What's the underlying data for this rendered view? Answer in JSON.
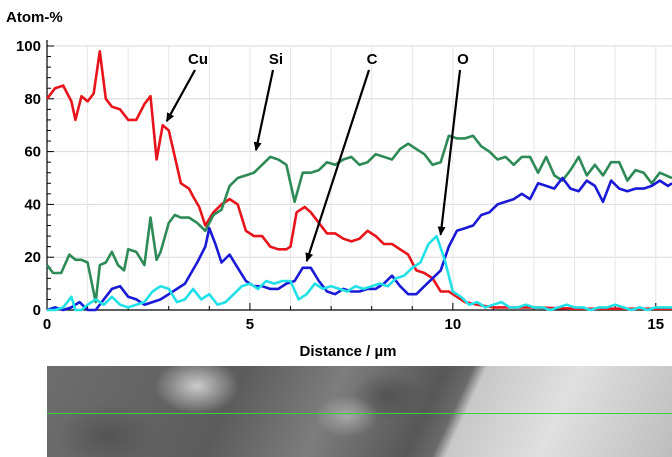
{
  "chart_data": {
    "type": "line",
    "ylabel": "Atom-%",
    "xlabel": "Distance / µm",
    "xlim": [
      0,
      15.4
    ],
    "ylim": [
      0,
      100
    ],
    "x_ticks": [
      0,
      5,
      10,
      15
    ],
    "y_ticks": [
      0,
      20,
      40,
      60,
      80,
      100
    ],
    "grid": true,
    "series": [
      {
        "color": "#e8141b",
        "x": [
          0,
          0.2,
          0.4,
          0.6,
          0.7,
          0.85,
          1.0,
          1.15,
          1.3,
          1.45,
          1.6,
          1.8,
          2.0,
          2.2,
          2.4,
          2.55,
          2.7,
          2.85,
          3.0,
          3.3,
          3.5,
          3.6,
          3.75,
          3.9,
          4.1,
          4.3,
          4.5,
          4.7,
          4.9,
          5.1,
          5.3,
          5.5,
          5.7,
          5.9,
          6.0,
          6.15,
          6.35,
          6.5,
          6.7,
          6.9,
          7.1,
          7.3,
          7.5,
          7.7,
          7.9,
          8.1,
          8.3,
          8.5,
          8.7,
          8.9,
          9.1,
          9.3,
          9.5,
          9.7,
          9.9,
          10.1,
          10.3,
          10.6,
          11,
          12,
          13,
          14,
          15,
          15.4
        ],
        "y": [
          80,
          84,
          85,
          79,
          72,
          81,
          79,
          82,
          98,
          80,
          77,
          76,
          72,
          72,
          78,
          81,
          57,
          70,
          68,
          48,
          46,
          43,
          39,
          32,
          37,
          40,
          42,
          40,
          30,
          28,
          28,
          24,
          23,
          23,
          24,
          37,
          39,
          37,
          33,
          29,
          29,
          27,
          26,
          27,
          30,
          28,
          25,
          25,
          23,
          21,
          15,
          14,
          12,
          7,
          7,
          5,
          3,
          2,
          1,
          1,
          0.5,
          0.5,
          0.5,
          0.5
        ]
      },
      {
        "color": "#2e8b57",
        "x": [
          0,
          0.15,
          0.35,
          0.55,
          0.7,
          0.85,
          1.0,
          1.2,
          1.3,
          1.45,
          1.6,
          1.75,
          1.9,
          2.0,
          2.2,
          2.4,
          2.55,
          2.7,
          2.8,
          3.0,
          3.15,
          3.3,
          3.5,
          3.7,
          3.9,
          4.1,
          4.3,
          4.5,
          4.7,
          4.9,
          5.1,
          5.3,
          5.5,
          5.7,
          5.9,
          6.1,
          6.3,
          6.5,
          6.7,
          6.9,
          7.1,
          7.3,
          7.5,
          7.7,
          7.9,
          8.1,
          8.3,
          8.5,
          8.7,
          8.9,
          9.1,
          9.3,
          9.5,
          9.7,
          9.9,
          10.1,
          10.3,
          10.5,
          10.7,
          10.9,
          11.1,
          11.3,
          11.5,
          11.7,
          11.9,
          12.1,
          12.3,
          12.5,
          12.7,
          12.9,
          13.1,
          13.3,
          13.5,
          13.7,
          13.9,
          14.1,
          14.3,
          14.5,
          14.7,
          14.9,
          15.1,
          15.4
        ],
        "y": [
          17,
          14,
          14,
          21,
          19,
          19,
          18,
          3,
          17,
          18,
          22,
          17,
          15,
          23,
          22,
          17,
          35,
          19,
          22,
          33,
          36,
          35,
          35,
          33,
          30,
          36,
          38,
          47,
          50,
          51,
          52,
          55,
          58,
          57,
          55,
          41,
          52,
          52,
          53,
          56,
          55,
          57,
          58,
          55,
          56,
          59,
          58,
          57,
          61,
          63,
          61,
          59,
          55,
          56,
          66,
          65,
          65,
          66,
          62,
          60,
          57,
          58,
          55,
          58,
          58,
          52,
          58,
          51,
          49,
          53,
          58,
          51,
          55,
          51,
          56,
          56,
          49,
          53,
          52,
          48,
          52,
          50
        ]
      },
      {
        "color": "#1a1ad6",
        "x": [
          0,
          0.2,
          0.4,
          0.6,
          0.8,
          1.0,
          1.2,
          1.4,
          1.6,
          1.8,
          2.0,
          2.2,
          2.4,
          2.6,
          2.8,
          3.0,
          3.2,
          3.4,
          3.55,
          3.7,
          3.9,
          4.0,
          4.15,
          4.3,
          4.5,
          4.7,
          4.9,
          5.1,
          5.3,
          5.5,
          5.7,
          5.9,
          6.1,
          6.3,
          6.5,
          6.7,
          6.9,
          7.1,
          7.3,
          7.5,
          7.7,
          7.9,
          8.1,
          8.3,
          8.5,
          8.7,
          8.9,
          9.1,
          9.3,
          9.5,
          9.7,
          9.9,
          10.1,
          10.3,
          10.5,
          10.7,
          10.9,
          11.1,
          11.3,
          11.5,
          11.7,
          11.9,
          12.1,
          12.3,
          12.5,
          12.7,
          12.9,
          13.1,
          13.3,
          13.5,
          13.7,
          13.9,
          14.1,
          14.3,
          14.5,
          14.7,
          14.9,
          15.1,
          15.3,
          15.4
        ],
        "y": [
          0,
          1,
          0,
          1,
          3,
          0,
          0,
          4,
          8,
          9,
          5,
          4,
          2,
          3,
          4,
          6,
          8,
          10,
          14,
          18,
          24,
          31,
          25,
          18,
          21,
          16,
          11,
          9,
          9,
          8,
          8,
          10,
          11,
          16,
          16,
          11,
          7,
          6,
          8,
          7,
          7,
          8,
          8,
          10,
          13,
          9,
          6,
          6,
          9,
          12,
          15,
          24,
          30,
          31,
          32,
          36,
          37,
          40,
          41,
          42,
          44,
          42,
          48,
          47,
          46,
          50,
          46,
          45,
          49,
          47,
          41,
          49,
          46,
          45,
          46,
          46,
          47,
          49,
          47,
          48
        ]
      },
      {
        "color": "#22e0e8",
        "x": [
          0,
          0.2,
          0.4,
          0.6,
          0.7,
          0.85,
          1.0,
          1.2,
          1.4,
          1.6,
          1.8,
          2.0,
          2.2,
          2.4,
          2.6,
          2.8,
          3.0,
          3.2,
          3.4,
          3.6,
          3.8,
          4.0,
          4.2,
          4.4,
          4.6,
          4.8,
          5.0,
          5.2,
          5.4,
          5.6,
          5.8,
          6.0,
          6.2,
          6.4,
          6.6,
          6.8,
          7.0,
          7.2,
          7.4,
          7.6,
          7.8,
          8.0,
          8.2,
          8.4,
          8.6,
          8.8,
          9.0,
          9.2,
          9.4,
          9.6,
          9.8,
          10.0,
          10.2,
          10.4,
          10.6,
          10.8,
          11.0,
          11.2,
          11.4,
          11.6,
          11.8,
          12.0,
          12.2,
          12.4,
          12.6,
          12.8,
          13.0,
          13.2,
          13.4,
          13.6,
          13.8,
          14.0,
          14.2,
          14.4,
          14.6,
          14.8,
          15.0,
          15.2,
          15.4
        ],
        "y": [
          0,
          0,
          1,
          5,
          0,
          0,
          2,
          4,
          2,
          5,
          2,
          1,
          2,
          3,
          7,
          9,
          8,
          3,
          4,
          8,
          4,
          6,
          2,
          3,
          6,
          9,
          10,
          8,
          11,
          10,
          11,
          11,
          4,
          6,
          10,
          8,
          9,
          8,
          7,
          9,
          8,
          9,
          10,
          9,
          12,
          13,
          16,
          18,
          25,
          28,
          19,
          7,
          5,
          2,
          3,
          1,
          2,
          3,
          1,
          1,
          2,
          1,
          1,
          0,
          1,
          2,
          1,
          1,
          0,
          1,
          1,
          2,
          1,
          0,
          1,
          0,
          1,
          1,
          1
        ]
      }
    ],
    "annotations": [
      {
        "label": "Cu",
        "x": 2.95,
        "y": 70
      },
      {
        "label": "Si",
        "x": 5.15,
        "y": 59
      },
      {
        "label": "C",
        "x": 6.4,
        "y": 17
      },
      {
        "label": "O",
        "x": 9.7,
        "y": 27
      }
    ]
  }
}
